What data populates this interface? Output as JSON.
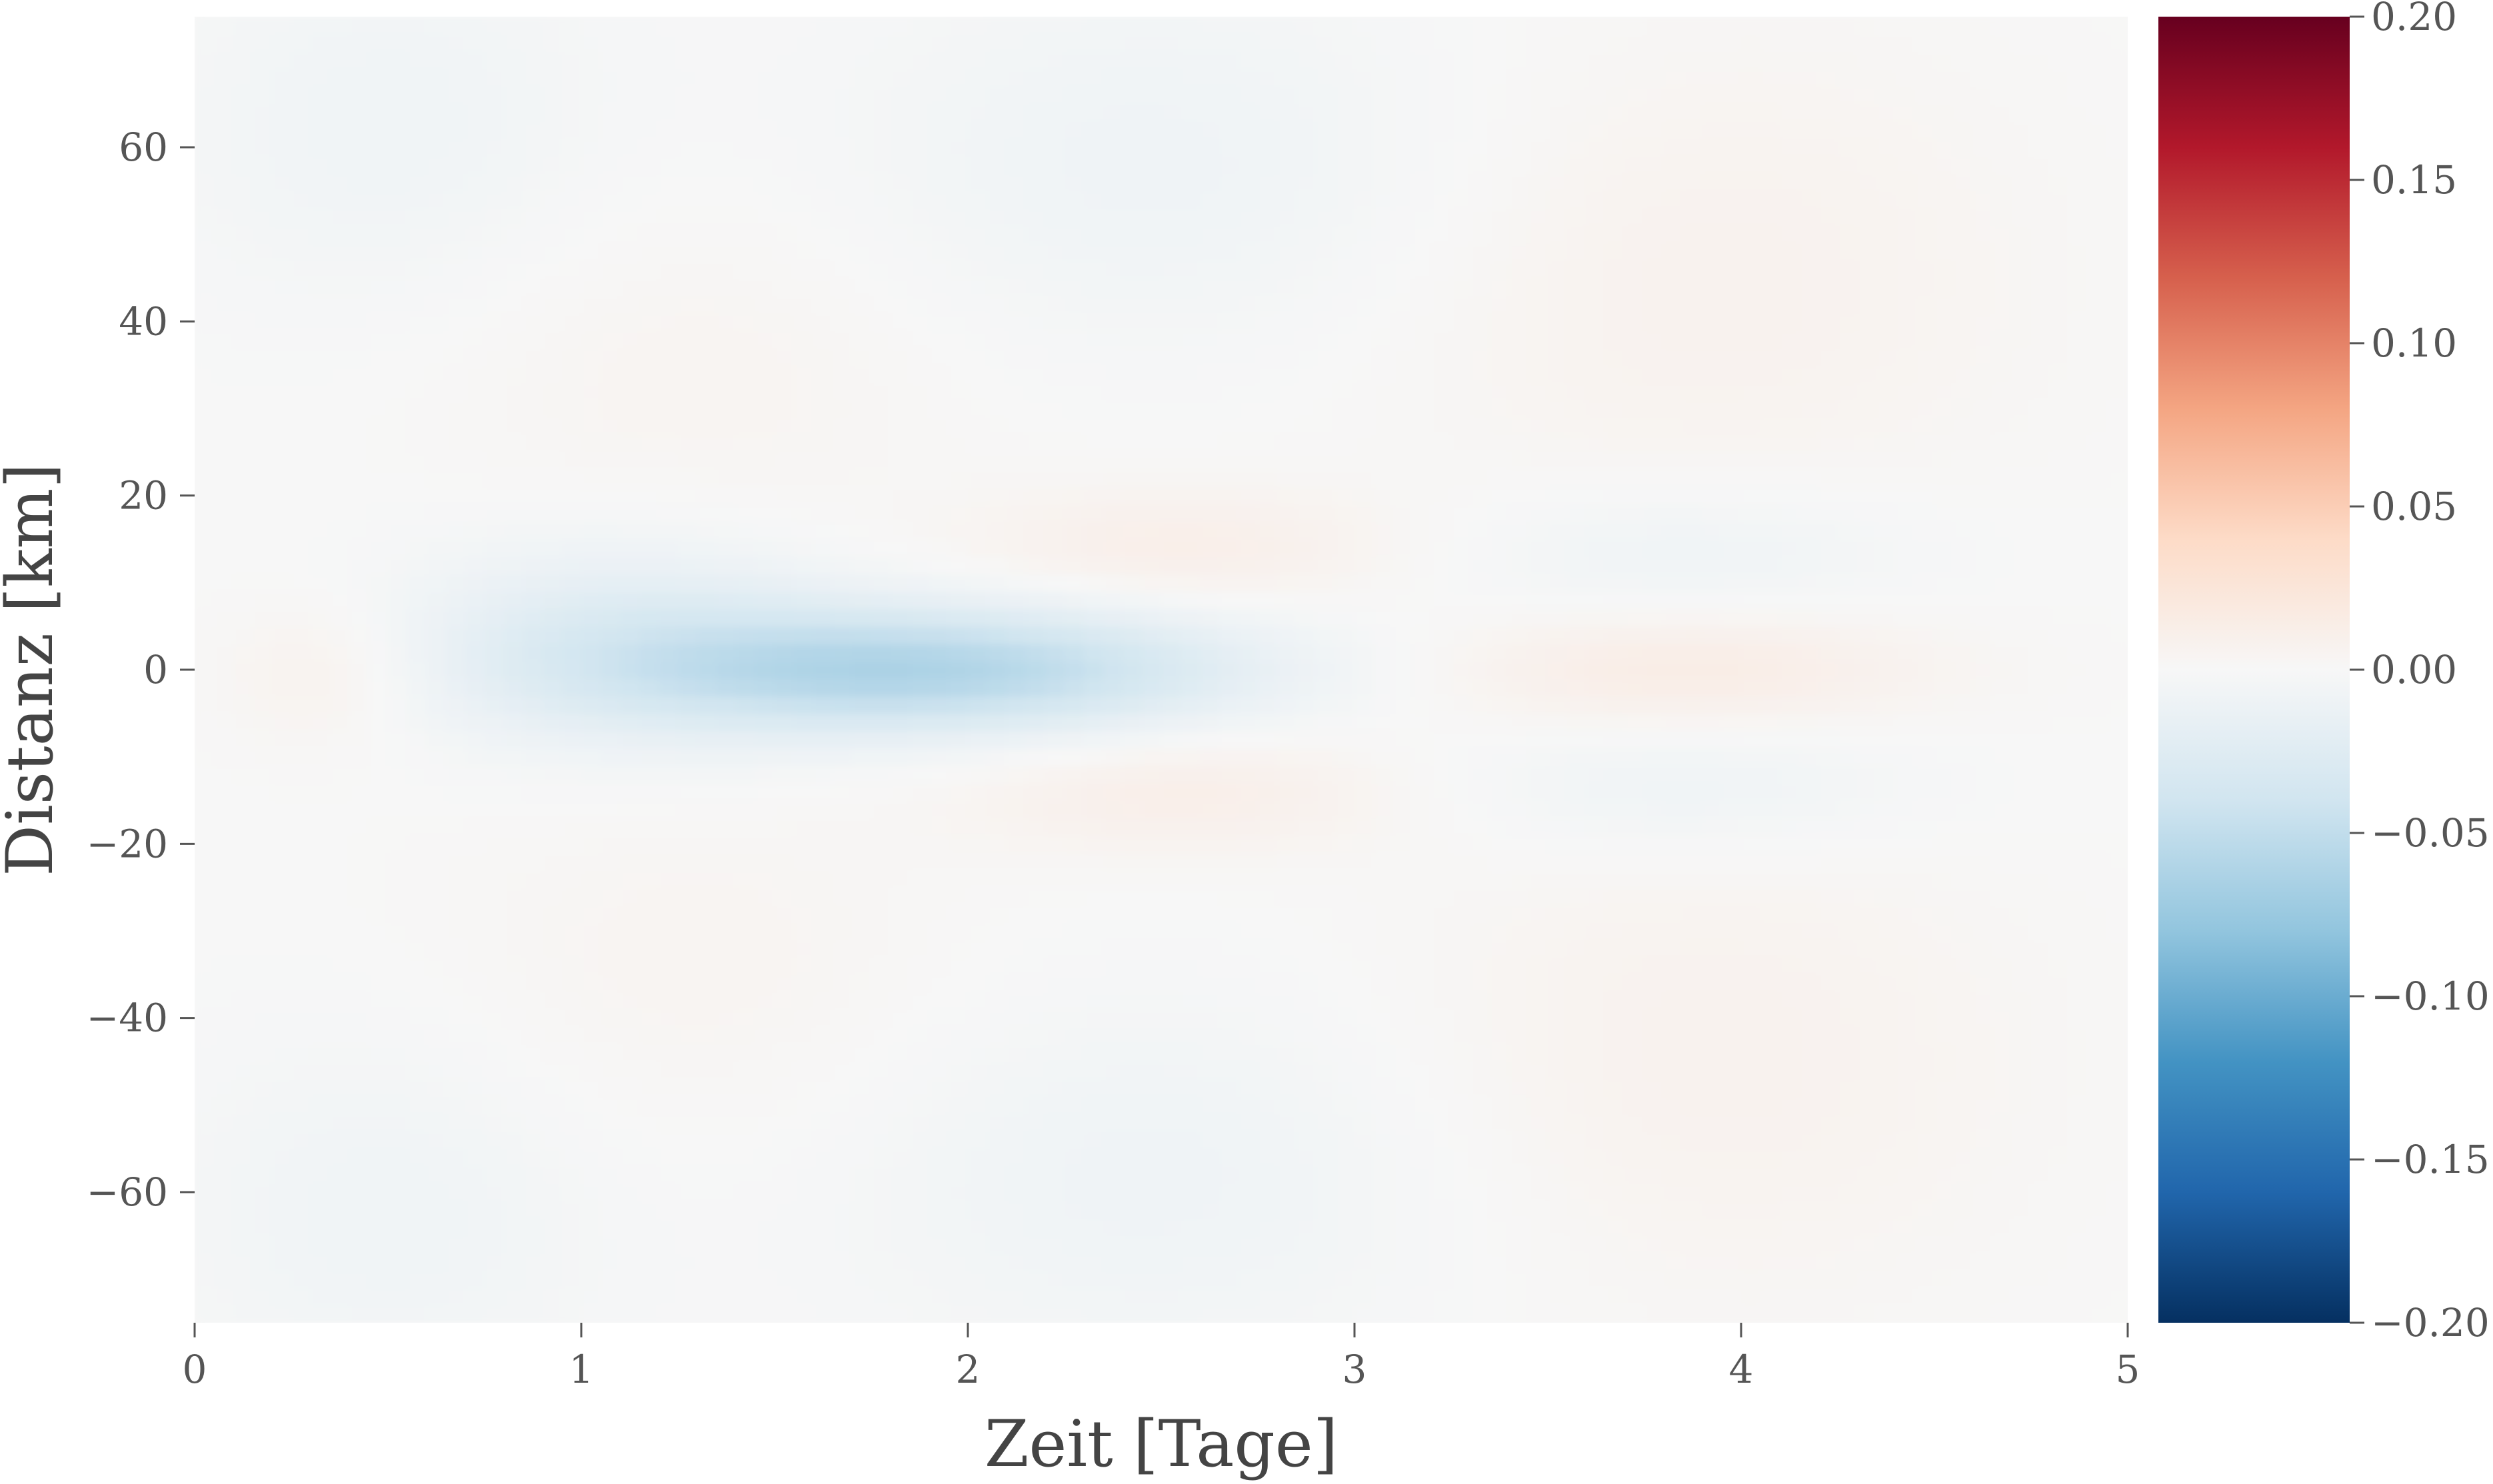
{
  "chart_data": {
    "type": "heatmap",
    "title": "",
    "xlabel": "Zeit [Tage]",
    "ylabel": "Distanz [km]",
    "xlim": [
      0,
      5
    ],
    "ylim": [
      -75,
      75
    ],
    "x_ticks": [
      0,
      1,
      2,
      3,
      4,
      5
    ],
    "x_tick_labels": [
      "0",
      "1",
      "2",
      "3",
      "4",
      "5"
    ],
    "y_ticks": [
      60,
      40,
      20,
      0,
      -20,
      -40,
      -60
    ],
    "y_tick_labels": [
      "60",
      "40",
      "20",
      "0",
      "−20",
      "−40",
      "−60"
    ],
    "grid": false,
    "colormap": "RdBu_r",
    "colorbar": {
      "range": [
        -0.2,
        0.2
      ],
      "ticks": [
        0.2,
        0.15,
        0.1,
        0.05,
        0.0,
        -0.05,
        -0.1,
        -0.15,
        -0.2
      ],
      "tick_labels": [
        "0.20",
        "0.15",
        "0.10",
        "0.05",
        "0.00",
        "−0.05",
        "−0.10",
        "−0.15",
        "−0.20"
      ],
      "colors": [
        "#053061",
        "#2166ac",
        "#4393c3",
        "#92c5de",
        "#d1e5f0",
        "#f7f7f7",
        "#fddbc7",
        "#f4a582",
        "#d6604d",
        "#b2182b",
        "#67001f"
      ]
    },
    "background_value": 0.0,
    "features": [
      {
        "t": 1.9,
        "d": 0,
        "sigma_t": 0.55,
        "sigma_d": 5,
        "value": -0.06
      },
      {
        "t": 1.1,
        "d": 3,
        "sigma_t": 0.4,
        "sigma_d": 8,
        "value": -0.025
      },
      {
        "t": 2.55,
        "d": 14,
        "sigma_t": 0.4,
        "sigma_d": 5,
        "value": 0.012
      },
      {
        "t": 2.55,
        "d": -14,
        "sigma_t": 0.4,
        "sigma_d": 5,
        "value": 0.012
      },
      {
        "t": 3.85,
        "d": 0,
        "sigma_t": 0.45,
        "sigma_d": 5,
        "value": 0.015
      },
      {
        "t": 3.85,
        "d": 13,
        "sigma_t": 0.45,
        "sigma_d": 6,
        "value": -0.01
      },
      {
        "t": 3.85,
        "d": -13,
        "sigma_t": 0.45,
        "sigma_d": 6,
        "value": -0.01
      },
      {
        "t": 0.35,
        "d": 0,
        "sigma_t": 0.2,
        "sigma_d": 6,
        "value": 0.01
      },
      {
        "t": 2.5,
        "d": 58,
        "sigma_t": 0.6,
        "sigma_d": 15,
        "value": -0.009
      },
      {
        "t": 2.5,
        "d": -58,
        "sigma_t": 0.6,
        "sigma_d": 15,
        "value": -0.009
      },
      {
        "t": 3.9,
        "d": 45,
        "sigma_t": 0.6,
        "sigma_d": 20,
        "value": 0.008
      },
      {
        "t": 3.9,
        "d": -45,
        "sigma_t": 0.6,
        "sigma_d": 20,
        "value": 0.008
      },
      {
        "t": 0.5,
        "d": 62,
        "sigma_t": 0.4,
        "sigma_d": 15,
        "value": -0.008
      },
      {
        "t": 0.5,
        "d": -62,
        "sigma_t": 0.4,
        "sigma_d": 15,
        "value": -0.008
      },
      {
        "t": 1.3,
        "d": 35,
        "sigma_t": 0.5,
        "sigma_d": 15,
        "value": 0.005
      },
      {
        "t": 1.3,
        "d": -35,
        "sigma_t": 0.5,
        "sigma_d": 15,
        "value": 0.005
      }
    ]
  }
}
